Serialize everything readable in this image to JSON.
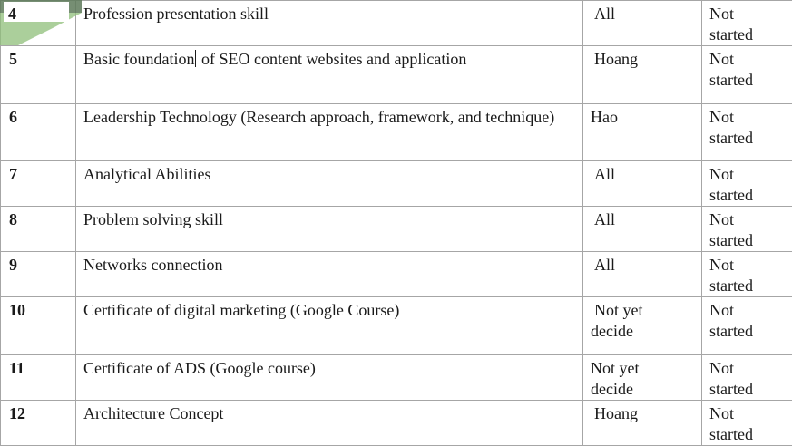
{
  "rows": [
    {
      "num": "4",
      "task": "Profession presentation skill",
      "owner": "All",
      "status_line1": "Not",
      "status_line2": "started"
    },
    {
      "num": "5",
      "task_part1": "Basic foundation",
      "task_part2": " of SEO content websites and application",
      "owner": "Hoang",
      "status_line1": "Not",
      "status_line2": "started"
    },
    {
      "num": "6",
      "task": "Leadership Technology (Research approach, framework, and technique)",
      "owner": "Hao",
      "status_line1": "Not",
      "status_line2": "started"
    },
    {
      "num": "7",
      "task": "Analytical Abilities",
      "owner": "All",
      "status_line1": "Not",
      "status_line2": "started"
    },
    {
      "num": "8",
      "task": "Problem solving skill",
      "owner": "All",
      "status_line1": "Not",
      "status_line2": "started"
    },
    {
      "num": "9",
      "task": "Networks connection",
      "owner": "All",
      "status_line1": "Not",
      "status_line2": "started"
    },
    {
      "num": "10",
      "task": "Certificate of digital marketing (Google Course)",
      "owner_line1": "Not yet",
      "owner_line2": "decide",
      "status_line1": "Not",
      "status_line2": "started"
    },
    {
      "num": "11",
      "task": "Certificate of ADS (Google course)",
      "owner_line1": "Not yet",
      "owner_line2": "decide",
      "status_line1": "Not",
      "status_line2": "started"
    },
    {
      "num": "12",
      "task": "Architecture Concept",
      "owner": "Hoang",
      "status_line1": "Not",
      "status_line2": "started"
    }
  ],
  "colors": {
    "grid": "#a6a6a6",
    "shape_green": "#8fbf7a",
    "shape_dark": "#5e7a5a"
  }
}
